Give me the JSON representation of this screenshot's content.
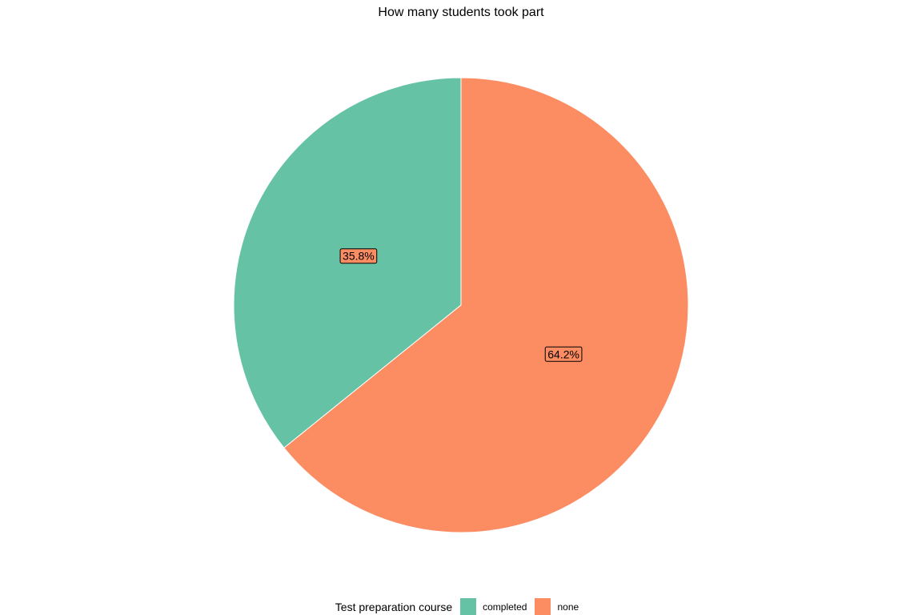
{
  "chart_data": {
    "type": "pie",
    "title": "How many students took part",
    "legend_title": "Test preparation course",
    "legend_position": "bottom",
    "categories": [
      "completed",
      "none"
    ],
    "values": [
      35.8,
      64.2
    ],
    "labels": [
      "35.8%",
      "64.2%"
    ],
    "colors": [
      "#66c2a5",
      "#fc8d62"
    ],
    "label_fill": "#fc8d62"
  }
}
